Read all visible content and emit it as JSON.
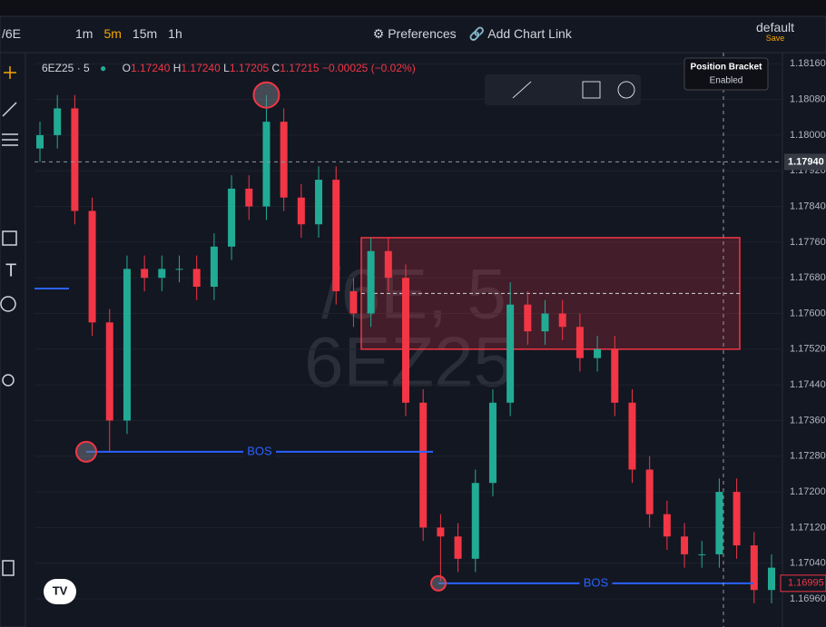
{
  "toolbar": {
    "symbol": "/6E",
    "intervals": [
      "1m",
      "5m",
      "15m",
      "1h"
    ],
    "preferences": "Preferences",
    "add_link": "Add Chart Link",
    "layout": "default",
    "save": "Save"
  },
  "tooltip": {
    "title": "Position Bracket",
    "status": "Enabled"
  },
  "legend": {
    "symbol": "6EZ25 · 5",
    "o_label": "O",
    "o": "1.17240",
    "h_label": "H",
    "h": "1.17240",
    "l_label": "L",
    "l": "1.17205",
    "c_label": "C",
    "c": "1.17215",
    "change": "−0.00025 (−0.02%)"
  },
  "watermark": {
    "line1": "/6E, 5",
    "line2": "6EZ25"
  },
  "chart_data": {
    "type": "candlestick",
    "open": [
      1.1797,
      1.18,
      1.1806,
      1.1783,
      1.1758,
      1.1736,
      1.177,
      1.1768,
      1.177,
      1.177,
      1.1766,
      1.1775,
      1.1788,
      1.1784,
      1.1803,
      1.1786,
      1.178,
      1.179,
      1.1765,
      1.176,
      1.1774,
      1.1768,
      1.174,
      1.1712,
      1.171,
      1.1705,
      1.1722,
      1.174,
      1.1762,
      1.1756,
      1.176,
      1.1757,
      1.175,
      1.1752,
      1.174,
      1.1725,
      1.1715,
      1.171,
      1.1706,
      1.1706,
      1.172,
      1.1708,
      1.1698
    ],
    "high": [
      1.1803,
      1.1809,
      1.1809,
      1.1786,
      1.1761,
      1.1773,
      1.1773,
      1.1773,
      1.1773,
      1.1773,
      1.1778,
      1.1791,
      1.1791,
      1.1809,
      1.1806,
      1.1789,
      1.1793,
      1.1793,
      1.1768,
      1.1777,
      1.1777,
      1.1771,
      1.1743,
      1.1715,
      1.1713,
      1.1725,
      1.1743,
      1.1767,
      1.1765,
      1.1763,
      1.1763,
      1.176,
      1.1755,
      1.1755,
      1.1743,
      1.1728,
      1.1718,
      1.1713,
      1.1709,
      1.1723,
      1.1723,
      1.1711,
      1.1706
    ],
    "low": [
      1.1794,
      1.1797,
      1.178,
      1.1755,
      1.1729,
      1.1733,
      1.1765,
      1.1765,
      1.1767,
      1.1763,
      1.1763,
      1.1772,
      1.1781,
      1.1781,
      1.1783,
      1.1777,
      1.1777,
      1.1762,
      1.1757,
      1.1757,
      1.1765,
      1.1737,
      1.1709,
      1.17,
      1.1702,
      1.1702,
      1.1719,
      1.1737,
      1.1753,
      1.1753,
      1.1754,
      1.1747,
      1.1747,
      1.1737,
      1.1722,
      1.1712,
      1.1707,
      1.1703,
      1.1703,
      1.1703,
      1.1705,
      1.1695,
      1.1695
    ],
    "close": [
      1.18,
      1.1806,
      1.1783,
      1.1758,
      1.1736,
      1.177,
      1.1768,
      1.177,
      1.177,
      1.1766,
      1.1775,
      1.1788,
      1.1784,
      1.1803,
      1.1786,
      1.178,
      1.179,
      1.1765,
      1.176,
      1.1774,
      1.1768,
      1.174,
      1.1712,
      1.171,
      1.1705,
      1.1722,
      1.174,
      1.1762,
      1.1756,
      1.176,
      1.1757,
      1.175,
      1.1752,
      1.174,
      1.1725,
      1.1715,
      1.171,
      1.1706,
      1.1706,
      1.172,
      1.1708,
      1.1698,
      1.1703
    ],
    "up_color": "#22ab94",
    "down_color": "#f23645",
    "ylim": [
      1.16897,
      1.18185
    ],
    "yticks": [
      {
        "value": 1.1816,
        "label": "1.18160"
      },
      {
        "value": 1.1808,
        "label": "1.18080"
      },
      {
        "value": 1.18,
        "label": "1.18000"
      },
      {
        "value": 1.1792,
        "label": "1.17920"
      },
      {
        "value": 1.1784,
        "label": "1.17840"
      },
      {
        "value": 1.1776,
        "label": "1.17760"
      },
      {
        "value": 1.1768,
        "label": "1.17680"
      },
      {
        "value": 1.176,
        "label": "1.17600"
      },
      {
        "value": 1.1752,
        "label": "1.17520"
      },
      {
        "value": 1.1744,
        "label": "1.17440"
      },
      {
        "value": 1.1736,
        "label": "1.17360"
      },
      {
        "value": 1.1728,
        "label": "1.17280"
      },
      {
        "value": 1.172,
        "label": "1.17200"
      },
      {
        "value": 1.1712,
        "label": "1.17120"
      },
      {
        "value": 1.1704,
        "label": "1.17040"
      },
      {
        "value": 1.1696,
        "label": "1.16960"
      }
    ],
    "zone": {
      "top": 1.1777,
      "bottom": 1.1752
    },
    "bos": [
      {
        "label": "BOS",
        "value": 1.1729
      },
      {
        "label": "BOS",
        "value": 1.16995
      }
    ],
    "crosshair": {
      "value": 1.1794,
      "label": "1.17940"
    },
    "last_price": {
      "value": 1.16995,
      "label": "1.16995"
    }
  }
}
